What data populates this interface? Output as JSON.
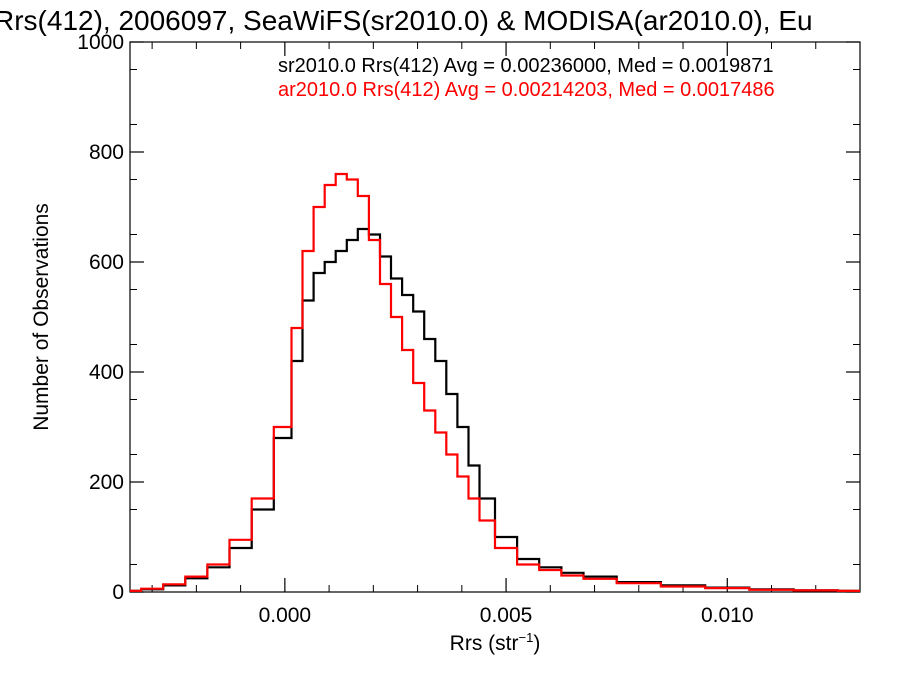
{
  "chart_data": {
    "type": "line",
    "title": "Rrs(412), 2006097, SeaWiFS(sr2010.0) & MODISA(ar2010.0), Eu",
    "xlabel": "Rrs (str",
    "xlabel_sup": "−1",
    "xlabel_suffix": ")",
    "ylabel": "Number of Observations",
    "xlim": [
      -0.0035,
      0.013
    ],
    "ylim": [
      0,
      1000
    ],
    "x_ticks": [
      0.0,
      0.005,
      0.01
    ],
    "x_tick_labels": [
      "0.000",
      "0.005",
      "0.010"
    ],
    "y_ticks": [
      0,
      200,
      400,
      600,
      800,
      1000
    ],
    "y_tick_labels": [
      "0",
      "200",
      "400",
      "600",
      "800",
      "1000"
    ],
    "grid": false,
    "legend_position": "top-right",
    "legend": [
      "sr2010.0 Rrs(412) Avg = 0.00236000, Med = 0.0019871",
      "ar2010.0 Rrs(412) Avg = 0.00214203, Med = 0.0017486"
    ],
    "series": [
      {
        "name": "sr2010.0",
        "color": "#000000",
        "x": [
          -0.0035,
          -0.003,
          -0.0025,
          -0.002,
          -0.0015,
          -0.001,
          -0.0005,
          0.0,
          0.0003,
          0.0005,
          0.0008,
          0.001,
          0.0013,
          0.0015,
          0.0018,
          0.002,
          0.0023,
          0.0025,
          0.0028,
          0.003,
          0.0033,
          0.0035,
          0.0038,
          0.004,
          0.0043,
          0.0045,
          0.005,
          0.0055,
          0.006,
          0.0065,
          0.007,
          0.008,
          0.009,
          0.01,
          0.011,
          0.012,
          0.013
        ],
        "y": [
          2,
          5,
          12,
          25,
          45,
          80,
          150,
          280,
          420,
          530,
          580,
          600,
          620,
          640,
          660,
          650,
          610,
          570,
          540,
          510,
          460,
          420,
          360,
          300,
          230,
          170,
          100,
          60,
          45,
          35,
          28,
          18,
          12,
          8,
          5,
          3,
          2
        ]
      },
      {
        "name": "ar2010.0",
        "color": "#ff0000",
        "x": [
          -0.0035,
          -0.003,
          -0.0025,
          -0.002,
          -0.0015,
          -0.001,
          -0.0005,
          0.0,
          0.0003,
          0.0005,
          0.0008,
          0.001,
          0.0013,
          0.0015,
          0.0018,
          0.002,
          0.0023,
          0.0025,
          0.0028,
          0.003,
          0.0033,
          0.0035,
          0.0038,
          0.004,
          0.0043,
          0.0045,
          0.005,
          0.0055,
          0.006,
          0.0065,
          0.007,
          0.008,
          0.009,
          0.01,
          0.011,
          0.012,
          0.013
        ],
        "y": [
          2,
          6,
          14,
          28,
          50,
          95,
          170,
          300,
          480,
          620,
          700,
          740,
          760,
          750,
          720,
          640,
          560,
          500,
          440,
          380,
          330,
          290,
          250,
          210,
          170,
          130,
          80,
          50,
          40,
          30,
          24,
          16,
          10,
          7,
          4,
          3,
          2
        ]
      }
    ]
  }
}
